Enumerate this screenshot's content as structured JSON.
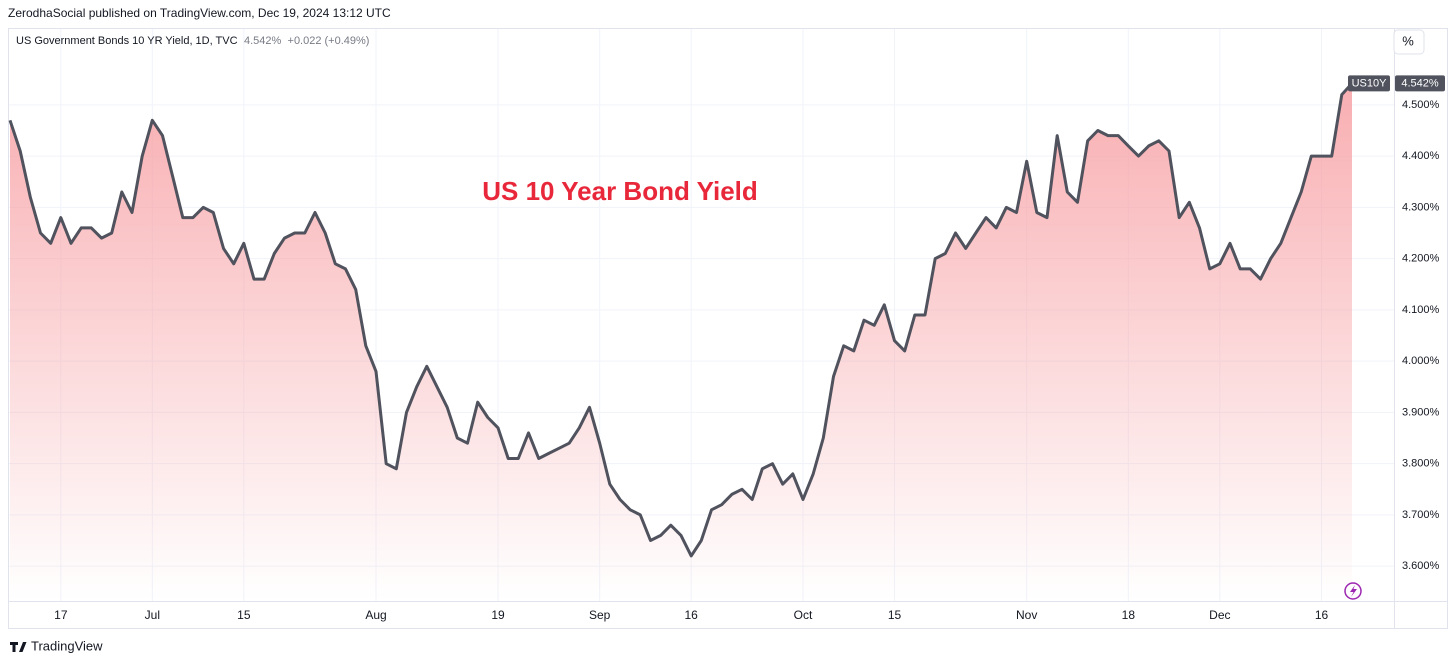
{
  "header": "ZerodhaSocial published on TradingView.com, Dec 19, 2024 13:12 UTC",
  "footer": "TradingView",
  "scale_button": "%",
  "chart_data": {
    "type": "line",
    "symbol_info": "US Government Bonds 10 YR Yield, 1D, TVC",
    "last_price": "4.542%",
    "change": "+0.022 (+0.49%)",
    "symbol": "US10Y",
    "annotation": "US 10 Year Bond Yield",
    "color": "#50535e",
    "fill": "#f7a0a4",
    "values": [
      4.47,
      4.41,
      4.32,
      4.25,
      4.23,
      4.28,
      4.23,
      4.26,
      4.26,
      4.24,
      4.25,
      4.33,
      4.29,
      4.4,
      4.47,
      4.44,
      4.36,
      4.28,
      4.28,
      4.3,
      4.29,
      4.22,
      4.19,
      4.23,
      4.16,
      4.16,
      4.21,
      4.24,
      4.25,
      4.25,
      4.29,
      4.25,
      4.19,
      4.18,
      4.14,
      4.03,
      3.98,
      3.8,
      3.79,
      3.9,
      3.95,
      3.99,
      3.95,
      3.91,
      3.85,
      3.84,
      3.92,
      3.89,
      3.87,
      3.81,
      3.81,
      3.86,
      3.81,
      3.82,
      3.83,
      3.84,
      3.87,
      3.91,
      3.84,
      3.76,
      3.73,
      3.71,
      3.7,
      3.65,
      3.66,
      3.68,
      3.66,
      3.62,
      3.65,
      3.71,
      3.72,
      3.74,
      3.75,
      3.73,
      3.79,
      3.8,
      3.76,
      3.78,
      3.73,
      3.78,
      3.85,
      3.97,
      4.03,
      4.02,
      4.08,
      4.07,
      4.11,
      4.04,
      4.02,
      4.09,
      4.09,
      4.2,
      4.21,
      4.25,
      4.22,
      4.25,
      4.28,
      4.26,
      4.3,
      4.29,
      4.39,
      4.29,
      4.28,
      4.44,
      4.33,
      4.31,
      4.43,
      4.45,
      4.44,
      4.44,
      4.42,
      4.4,
      4.42,
      4.43,
      4.41,
      4.28,
      4.31,
      4.26,
      4.18,
      4.19,
      4.23,
      4.18,
      4.18,
      4.16,
      4.2,
      4.23,
      4.28,
      4.33,
      4.4,
      4.4,
      4.4,
      4.52,
      4.542
    ],
    "xlim": [
      0,
      132
    ],
    "xticks": [
      {
        "value": 5,
        "label": "17"
      },
      {
        "value": 14,
        "label": "Jul"
      },
      {
        "value": 23,
        "label": "15"
      },
      {
        "value": 36,
        "label": "Aug"
      },
      {
        "value": 48,
        "label": "19"
      },
      {
        "value": 58,
        "label": "Sep"
      },
      {
        "value": 67,
        "label": "16"
      },
      {
        "value": 78,
        "label": "Oct"
      },
      {
        "value": 87,
        "label": "15"
      },
      {
        "value": 100,
        "label": "Nov"
      },
      {
        "value": 110,
        "label": "18"
      },
      {
        "value": 119,
        "label": "Dec"
      },
      {
        "value": 129,
        "label": "16"
      }
    ],
    "ylim": [
      3.534,
      4.65
    ],
    "yticks": [
      {
        "value": 3.6,
        "label": "3.600%"
      },
      {
        "value": 3.7,
        "label": "3.700%"
      },
      {
        "value": 3.8,
        "label": "3.800%"
      },
      {
        "value": 3.9,
        "label": "3.900%"
      },
      {
        "value": 4.0,
        "label": "4.000%"
      },
      {
        "value": 4.1,
        "label": "4.100%"
      },
      {
        "value": 4.2,
        "label": "4.200%"
      },
      {
        "value": 4.3,
        "label": "4.300%"
      },
      {
        "value": 4.4,
        "label": "4.400%"
      },
      {
        "value": 4.5,
        "label": "4.500%"
      }
    ],
    "grid": true
  }
}
